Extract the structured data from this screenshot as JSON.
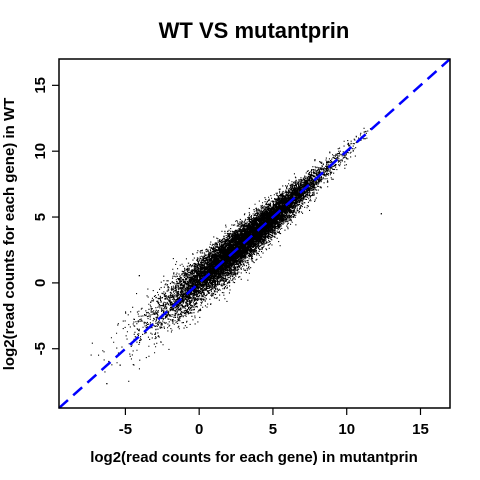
{
  "chart_data": {
    "type": "scatter",
    "title": "WT VS mutantprin",
    "xlabel": "log2(read counts for each gene) in mutantprin",
    "ylabel": "log2(read counts for each gene) in WT",
    "xlim": [
      -9.5,
      17
    ],
    "ylim": [
      -9.5,
      17
    ],
    "xticks": [
      -5,
      0,
      5,
      10,
      15
    ],
    "yticks": [
      -5,
      0,
      5,
      10,
      15
    ],
    "xtick_labels": [
      "-5",
      "0",
      "5",
      "10",
      "15"
    ],
    "ytick_labels": [
      "-5",
      "0",
      "5",
      "10",
      "15"
    ],
    "grid": false,
    "point_color": "#000000",
    "reference_line": {
      "slope": 1,
      "intercept": 0,
      "style": "dashed",
      "color": "#0000ff"
    },
    "cloud": {
      "point_count": 14000,
      "x_range": [
        -7,
        12
      ],
      "center_mean": 3,
      "spread_along_line_sd": 2.6,
      "scatter_sd_at_low": 1.3,
      "scatter_sd_at_high": 0.25
    },
    "outliers": [
      {
        "x": 11.2,
        "y": 11.0
      },
      {
        "x": 12.3,
        "y": 5.3
      },
      {
        "x": -3.5,
        "y": -2.2
      },
      {
        "x": -6.3,
        "y": -7.6
      },
      {
        "x": -5.4,
        "y": -6.2
      },
      {
        "x": -4.1,
        "y": 0.6
      },
      {
        "x": 7.8,
        "y": 9.4
      }
    ]
  }
}
